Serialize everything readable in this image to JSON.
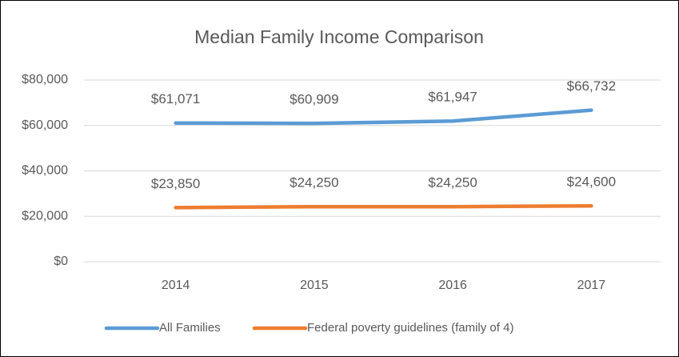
{
  "chart_data": {
    "type": "line",
    "title": "Median Family Income Comparison",
    "categories": [
      "2014",
      "2015",
      "2016",
      "2017"
    ],
    "series": [
      {
        "name": "All Families",
        "color": "#5b9bd5",
        "values": [
          61071,
          60909,
          61947,
          66732
        ],
        "value_labels": [
          "$61,071",
          "$60,909",
          "$61,947",
          "$66,732"
        ]
      },
      {
        "name": "Federal poverty guidelines (family of 4)",
        "color": "#ed7d31",
        "values": [
          23850,
          24250,
          24250,
          24600
        ],
        "value_labels": [
          "$23,850",
          "$24,250",
          "$24,250",
          "$24,600"
        ]
      }
    ],
    "ylim": [
      0,
      80000
    ],
    "yticks": [
      {
        "value": 0,
        "label": "$0"
      },
      {
        "value": 20000,
        "label": "$20,000"
      },
      {
        "value": 40000,
        "label": "$40,000"
      },
      {
        "value": 60000,
        "label": "$60,000"
      },
      {
        "value": 80000,
        "label": "$80,000"
      }
    ],
    "grid": true,
    "legend": "bottom"
  }
}
